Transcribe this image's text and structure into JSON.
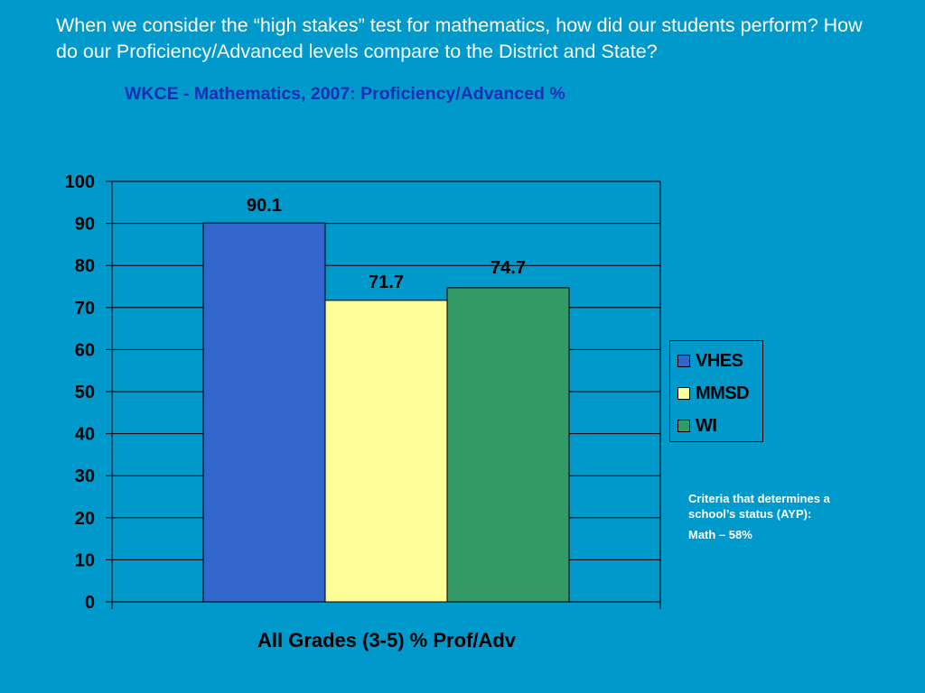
{
  "slide": {
    "question": "When we consider the “high stakes” test for mathematics, how did our students perform? How do our Proficiency/Advanced levels compare to the District and State?",
    "criteria_heading": "Criteria that determines a school’s status (AYP):",
    "criteria_value": "Math – 58%"
  },
  "chart_data": {
    "type": "bar",
    "title": "WKCE - Mathematics, 2007: Proficiency/Advanced %",
    "categories": [
      "All Grades (3-5) % Prof/Adv"
    ],
    "series": [
      {
        "name": "VHES",
        "values": [
          90.1
        ],
        "color": "#3366cc"
      },
      {
        "name": "MMSD",
        "values": [
          71.7
        ],
        "color": "#ffff99"
      },
      {
        "name": "WI",
        "values": [
          74.7
        ],
        "color": "#339966"
      }
    ],
    "data_labels": [
      "90.1",
      "71.7",
      "74.7"
    ],
    "ylim": [
      0,
      100
    ],
    "yticks": [
      0,
      10,
      20,
      30,
      40,
      50,
      60,
      70,
      80,
      90,
      100
    ],
    "grid": true,
    "legend": "right",
    "xlabel": "",
    "ylabel": ""
  }
}
